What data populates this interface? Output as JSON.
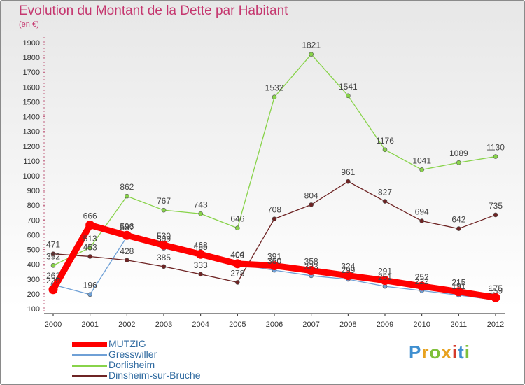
{
  "header": {
    "title": "Evolution du Montant de la Dette par Habitant",
    "subtitle": "(en €)"
  },
  "colors": {
    "title": "#c5376f",
    "legend_text": "#2f6aa0"
  },
  "logo": {
    "text": "Proxiti",
    "letter_colors": [
      "#3f8fd0",
      "#e8a21f",
      "#7fc03a",
      "#e8a21f",
      "#d53a2a",
      "#3f8fd0",
      "#7fc03a"
    ]
  },
  "chart_data": {
    "type": "line",
    "title": "Evolution du Montant de la Dette par Habitant",
    "ylabel": "(en €)",
    "xlabel": "",
    "x": [
      "2000",
      "2001",
      "2002",
      "2003",
      "2004",
      "2005",
      "2006",
      "2007",
      "2008",
      "2009",
      "2010",
      "2011",
      "2012"
    ],
    "ylim": [
      100,
      1900
    ],
    "yticks": [
      100,
      200,
      300,
      400,
      500,
      600,
      700,
      800,
      900,
      1000,
      1100,
      1200,
      1300,
      1400,
      1500,
      1600,
      1700,
      1800,
      1900
    ],
    "grid": false,
    "legend_position": "bottom-left",
    "series": [
      {
        "name": "MUTZIG",
        "color": "#ff0000",
        "highlight": true,
        "values": [
          229,
          666,
          596,
          530,
          468,
          404,
          391,
          358,
          324,
          291,
          252,
          215,
          175
        ]
      },
      {
        "name": "Gresswiller",
        "color": "#6fa0d6",
        "highlight": false,
        "values": [
          262,
          196,
          587,
          509,
          455,
          400,
          360,
          323,
          299,
          251,
          222,
          191,
          159
        ]
      },
      {
        "name": "Dorlisheim",
        "color": "#88d34a",
        "highlight": false,
        "values": [
          392,
          513,
          862,
          767,
          743,
          646,
          1532,
          1821,
          1541,
          1176,
          1041,
          1089,
          1130
        ]
      },
      {
        "name": "Dinsheim-sur-Bruche",
        "color": "#6e2424",
        "highlight": false,
        "values": [
          471,
          453,
          428,
          385,
          333,
          278,
          708,
          804,
          961,
          827,
          694,
          642,
          735
        ]
      }
    ]
  }
}
